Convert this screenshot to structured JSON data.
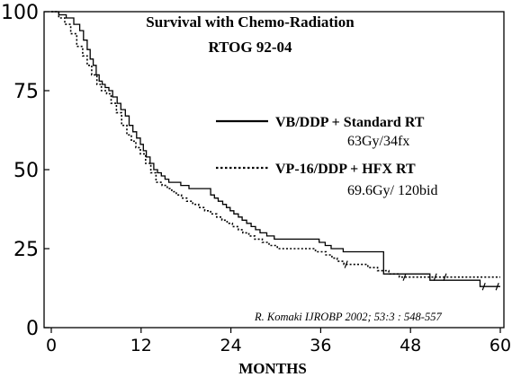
{
  "chart_data": {
    "type": "line",
    "title": "Survival with Chemo-Radiation",
    "subtitle": "RTOG 92-04",
    "xlabel": "MONTHS",
    "ylabel": "",
    "xlim": [
      0,
      60
    ],
    "ylim": [
      0,
      100
    ],
    "x_ticks": [
      "0",
      "12",
      "24",
      "36",
      "48",
      "60"
    ],
    "y_ticks": [
      "0",
      "25",
      "50",
      "75",
      "100"
    ],
    "grid": false,
    "legend_position": "right",
    "citation": "R. Komaki IJROBP 2002; 53:3 : 548-557",
    "series": [
      {
        "name": "VB/DDP + Standard RT",
        "detail": "63Gy/34fx",
        "style": "solid",
        "color": "#000000",
        "x": [
          0,
          1,
          2,
          3,
          3.8,
          4.3,
          4.8,
          5.2,
          5.6,
          6,
          6.4,
          6.8,
          7.2,
          7.7,
          8.2,
          8.8,
          9.3,
          9.9,
          10.4,
          10.9,
          11.4,
          11.9,
          12.3,
          12.7,
          13.2,
          13.7,
          14.2,
          14.7,
          15.2,
          15.7,
          16.2,
          16.8,
          17.3,
          17.9,
          18.4,
          18.9,
          21.3,
          21.8,
          22.3,
          22.9,
          23.4,
          23.9,
          24.4,
          25,
          25.5,
          26.1,
          26.7,
          27.3,
          27.9,
          28.8,
          29.8,
          30.8,
          35.8,
          36.6,
          37.4,
          38.2,
          39,
          43.7,
          44.4,
          45.3,
          46.4,
          50.6,
          57.3,
          60
        ],
        "y": [
          100,
          99,
          98,
          96,
          94,
          91,
          88,
          85,
          83,
          80,
          78,
          77,
          76,
          75,
          73,
          71,
          69,
          67,
          64,
          62,
          60,
          58,
          56,
          54,
          52,
          50,
          49,
          48,
          47,
          46,
          46,
          46,
          45,
          45,
          44,
          44,
          42,
          41,
          40,
          39,
          38,
          37,
          36,
          35,
          34,
          33,
          32,
          31,
          30,
          29,
          28,
          28,
          27,
          26,
          25,
          25,
          24,
          24,
          17,
          17,
          17,
          15,
          13,
          13
        ],
        "censor_x": [
          57.8,
          59.6
        ]
      },
      {
        "name": "VP-16/DDP + HFX RT",
        "detail": "69.6Gy/ 120bid",
        "style": "dotted",
        "color": "#000000",
        "x": [
          0,
          1,
          1.8,
          2.6,
          3.4,
          4.2,
          4.8,
          5.4,
          6.1,
          6.7,
          7.4,
          8,
          8.7,
          9.4,
          10.1,
          10.7,
          11.3,
          11.9,
          12.6,
          13.3,
          14,
          14.8,
          15.5,
          16.1,
          16.7,
          17.4,
          18.1,
          18.9,
          19.7,
          20.5,
          21.3,
          22.1,
          22.8,
          23.5,
          24.2,
          25,
          25.6,
          26.4,
          27.2,
          28.2,
          29.1,
          30.2,
          34.2,
          35.3,
          36.7,
          37.5,
          38.2,
          39.1,
          42.3,
          43.6,
          45.1,
          46.5,
          49.2,
          60
        ],
        "y": [
          100,
          98,
          96,
          93,
          89,
          86,
          83,
          80,
          77,
          75,
          74,
          71,
          68,
          64,
          61,
          59,
          57,
          55,
          52,
          49,
          46,
          45,
          44,
          43,
          42,
          41,
          40,
          39,
          38,
          37,
          36,
          35,
          34,
          33,
          32,
          31,
          30,
          29,
          28,
          27,
          26,
          25,
          25,
          24,
          23,
          22,
          21,
          20,
          19,
          18,
          17,
          16,
          16,
          16
        ],
        "censor_x": [
          39.4,
          47.2,
          51.3,
          52.6
        ]
      }
    ]
  }
}
